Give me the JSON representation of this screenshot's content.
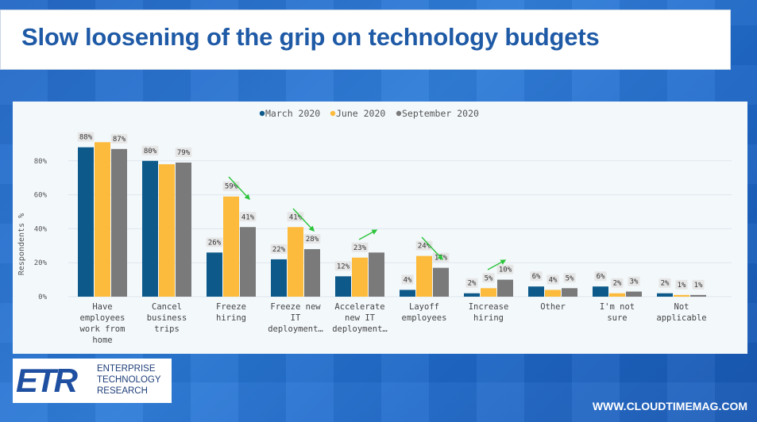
{
  "page": {
    "title": "Slow loosening of the grip on technology budgets",
    "website": "WWW.CLOUDTIMEMAG.COM"
  },
  "logo": {
    "mark": "ETR",
    "lines": [
      "ENTERPRISE",
      "TECHNOLOGY",
      "RESEARCH"
    ]
  },
  "colors": {
    "march": "#0d5a8a",
    "june": "#fcbb3c",
    "september": "#7a7a7a",
    "arrow": "#2dc43b"
  },
  "chart_data": {
    "type": "bar",
    "ylabel": "Respondents %",
    "ylim": [
      0,
      100
    ],
    "yticks": [
      0,
      20,
      40,
      60,
      80
    ],
    "ytick_labels": [
      "0%",
      "20%",
      "40%",
      "60%",
      "80%"
    ],
    "legend_position": "top-center",
    "categories": [
      [
        "Have",
        "employees",
        "work from",
        "home"
      ],
      [
        "Cancel",
        "business",
        "trips"
      ],
      [
        "Freeze",
        "hiring"
      ],
      [
        "Freeze new",
        "IT",
        "deployment…"
      ],
      [
        "Accelerate",
        "new IT",
        "deployment…"
      ],
      [
        "Layoff",
        "employees"
      ],
      [
        "Increase",
        "hiring"
      ],
      [
        "Other"
      ],
      [
        "I'm not",
        "sure"
      ],
      [
        "Not",
        "applicable"
      ]
    ],
    "series": [
      {
        "name": "March 2020",
        "values": [
          88,
          80,
          26,
          22,
          12,
          4,
          2,
          6,
          6,
          2
        ],
        "labels": [
          "88%",
          "80%",
          "26%",
          "22%",
          "12%",
          "4%",
          "2%",
          "6%",
          "6%",
          "2%"
        ]
      },
      {
        "name": "June 2020",
        "values": [
          91,
          78,
          59,
          41,
          23,
          24,
          5,
          4,
          2,
          1
        ],
        "labels": [
          "",
          "",
          "59%",
          "41%",
          "23%",
          "24%",
          "5%",
          "4%",
          "2%",
          "1%"
        ]
      },
      {
        "name": "September 2020",
        "values": [
          87,
          79,
          41,
          28,
          26,
          17,
          10,
          5,
          3,
          1
        ],
        "labels": [
          "87%",
          "79%",
          "41%",
          "28%",
          "",
          "17%",
          "10%",
          "5%",
          "3%",
          "1%"
        ]
      }
    ],
    "trend_arrows": [
      "down",
      "down",
      "up",
      "down",
      "up"
    ]
  }
}
